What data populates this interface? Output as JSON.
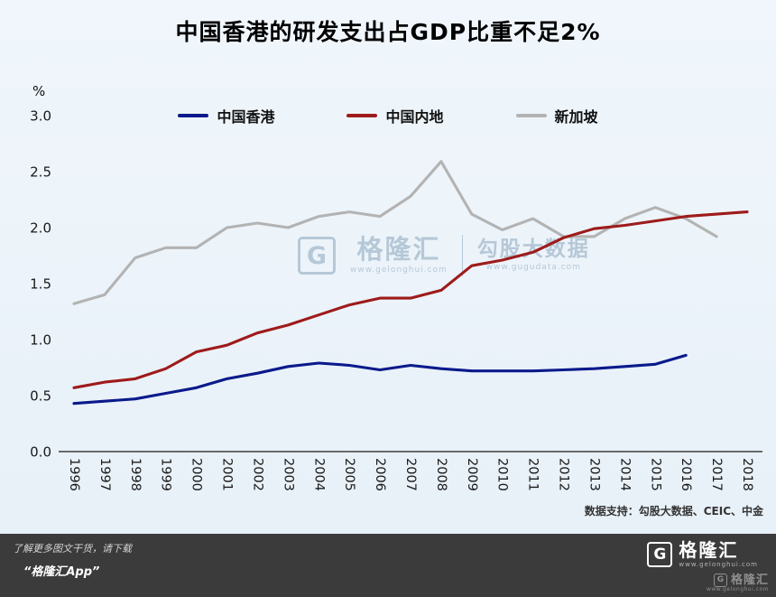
{
  "title": "中国香港的研发支出占GDP比重不足2%",
  "chart_data": {
    "type": "line",
    "ylabel": "%",
    "ylim": [
      0,
      3.0
    ],
    "yticks": [
      "0.0",
      "0.5",
      "1.0",
      "1.5",
      "2.0",
      "2.5",
      "3.0"
    ],
    "grid": false,
    "legend_position": "top",
    "categories": [
      "1996",
      "1997",
      "1998",
      "1999",
      "2000",
      "2001",
      "2002",
      "2003",
      "2004",
      "2005",
      "2006",
      "2007",
      "2008",
      "2009",
      "2010",
      "2011",
      "2012",
      "2013",
      "2014",
      "2015",
      "2016",
      "2017",
      "2018"
    ],
    "series": [
      {
        "id": "hongkong",
        "name": "中国香港",
        "color": "#0a1a8c",
        "values": [
          0.43,
          0.45,
          0.47,
          0.52,
          0.57,
          0.65,
          0.7,
          0.76,
          0.79,
          0.77,
          0.73,
          0.77,
          0.74,
          0.72,
          0.72,
          0.72,
          0.73,
          0.74,
          0.76,
          0.78,
          0.86,
          null,
          null
        ]
      },
      {
        "id": "mainland",
        "name": "中国内地",
        "color": "#9e1b1b",
        "values": [
          0.57,
          0.62,
          0.65,
          0.74,
          0.89,
          0.95,
          1.06,
          1.13,
          1.22,
          1.31,
          1.37,
          1.37,
          1.44,
          1.66,
          1.71,
          1.78,
          1.91,
          1.99,
          2.02,
          2.06,
          2.1,
          2.12,
          2.14
        ]
      },
      {
        "id": "singapore",
        "name": "新加坡",
        "color": "#b3b3b3",
        "values": [
          1.32,
          1.4,
          1.73,
          1.82,
          1.82,
          2.0,
          2.04,
          2.0,
          2.1,
          2.14,
          2.1,
          2.28,
          2.59,
          2.12,
          1.98,
          2.08,
          1.92,
          1.92,
          2.08,
          2.18,
          2.08,
          1.92,
          null
        ]
      }
    ]
  },
  "watermark": {
    "logo_letter": "G",
    "brand": "格隆汇",
    "brand_url": "www.gelonghui.com",
    "partner": "勾股大数据",
    "partner_url": "www.gugudata.com"
  },
  "source_note": "数据支持：勾股大数据、CEIC、中金",
  "footer": {
    "line1": "了解更多图文干货，请下载",
    "line2": "“格隆汇App”",
    "logo_letter": "G",
    "brand": "格隆汇",
    "brand_url": "www.gelonghui.com"
  }
}
